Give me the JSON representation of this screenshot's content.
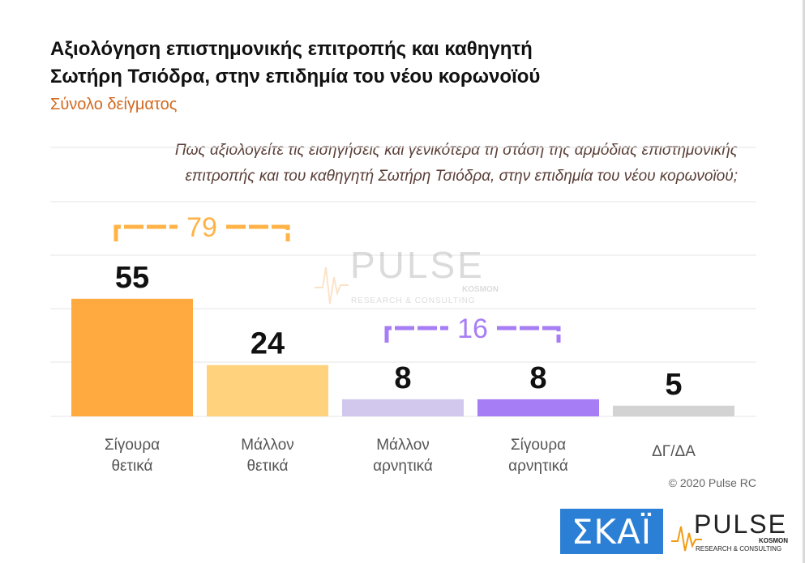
{
  "header": {
    "title_line1": "Αξιολόγηση επιστημονικής επιτροπής και καθηγητή",
    "title_line2": "Σωτήρη Τσιόδρα, στην επιδημία του νέου κορωνοϊού",
    "subtitle": "Σύνολο δείγματος",
    "question_line1": "Πως αξιολογείτε τις εισηγήσεις και γενικότερα τη στάση της αρμόδιας επιστημονικής",
    "question_line2": "επιτροπής και του καθηγητή Σωτήρη Τσιόδρα, στην επιδημία του νέου κορωνοϊού;"
  },
  "chart_data": {
    "type": "bar",
    "categories": [
      [
        "Σίγουρα",
        "θετικά"
      ],
      [
        "Μάλλον",
        "θετικά"
      ],
      [
        "Μάλλον",
        "αρνητικά"
      ],
      [
        "Σίγουρα",
        "αρνητικά"
      ],
      [
        "ΔΓ/ΔΑ"
      ]
    ],
    "values": [
      55,
      24,
      8,
      8,
      5
    ],
    "colors": [
      "#ffaa40",
      "#ffd27d",
      "#d2c8ee",
      "#a77df5",
      "#d3d3d3"
    ],
    "groups": [
      {
        "label": "79",
        "from": 0,
        "to": 1,
        "color": "#ffb347"
      },
      {
        "label": "16",
        "from": 2,
        "to": 3,
        "color": "#a77df5"
      }
    ],
    "grid": true,
    "ylim": [
      0,
      60
    ]
  },
  "watermark": {
    "name": "PULSE",
    "tag": "KOSMON",
    "sub": "RESEARCH & CONSULTING"
  },
  "footer": {
    "copyright": "© 2020 Pulse RC",
    "skai_logo": "ΣΚΑΪ",
    "pulse_name": "PULSE",
    "pulse_tag": "KOSMON",
    "pulse_sub": "RESEARCH & CONSULTING"
  }
}
